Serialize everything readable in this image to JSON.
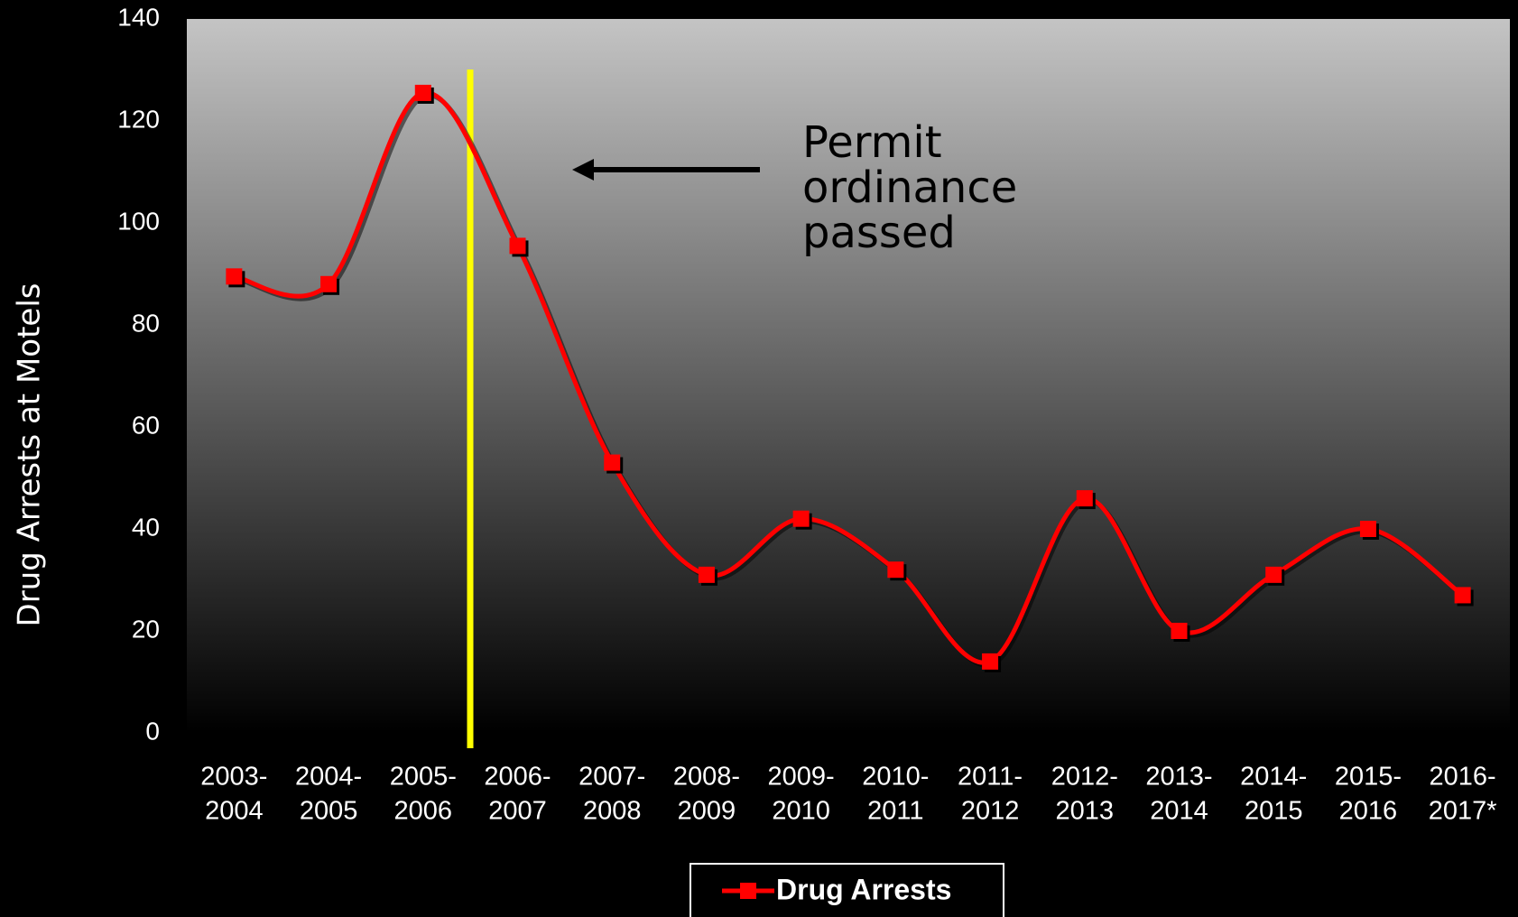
{
  "chart_data": {
    "type": "line",
    "y_label": "Drug Arrests at Motels",
    "categories": [
      [
        "2003-",
        "2004"
      ],
      [
        "2004-",
        "2005"
      ],
      [
        "2005-",
        "2006"
      ],
      [
        "2006-",
        "2007"
      ],
      [
        "2007-",
        "2008"
      ],
      [
        "2008-",
        "2009"
      ],
      [
        "2009-",
        "2010"
      ],
      [
        "2010-",
        "2011"
      ],
      [
        "2011-",
        "2012"
      ],
      [
        "2012-",
        "2013"
      ],
      [
        "2013-",
        "2014"
      ],
      [
        "2014-",
        "2015"
      ],
      [
        "2015-",
        "2016"
      ],
      [
        "2016-",
        "2017*"
      ]
    ],
    "series": [
      {
        "name": "Drug Arrests",
        "color": "#ff0000",
        "values": [
          89.5,
          88,
          125.5,
          95.5,
          53,
          31,
          42,
          32,
          14,
          46,
          20,
          31,
          40,
          27
        ]
      }
    ],
    "ylim": [
      0,
      140
    ],
    "yticks": [
      0,
      20,
      40,
      60,
      80,
      100,
      120,
      140
    ],
    "annotation": [
      "Permit",
      "ordinance",
      "passed"
    ],
    "legend": "bottom"
  }
}
